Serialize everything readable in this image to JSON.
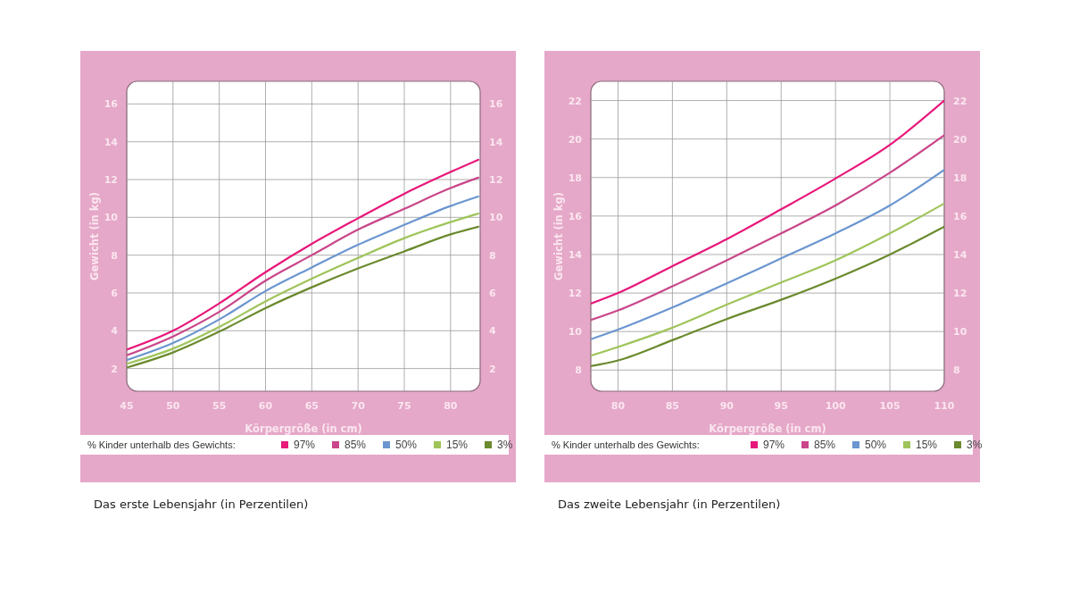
{
  "chart_data": [
    {
      "type": "line",
      "xlabel": "Körpergröße (in cm)",
      "ylabel": "Gewicht (in kg)",
      "legend_title": "% Kinder unterhalb des Gewichts:",
      "legend": "bottom",
      "grid": true,
      "line_style": "solid",
      "marker": "none",
      "x": [
        45,
        50,
        55,
        60,
        65,
        70,
        75,
        80,
        83
      ],
      "xlim": [
        45,
        83.2
      ],
      "xticks": [
        45,
        50,
        55,
        60,
        65,
        70,
        75,
        80
      ],
      "ylim": [
        0.8,
        17.2
      ],
      "yticks": [
        2,
        4,
        6,
        8,
        10,
        12,
        14,
        16
      ],
      "y2lim": [
        0.8,
        17.2
      ],
      "y2ticks": [
        2,
        4,
        6,
        8,
        10,
        12,
        14,
        16
      ],
      "annotations": [
        "Das erste Lebensjahr (in Perzentilen)"
      ],
      "series": [
        {
          "name": "97%",
          "color": "#e8177a",
          "values": [
            3.0,
            4.0,
            5.45,
            7.1,
            8.6,
            9.95,
            11.25,
            12.4,
            13.05
          ]
        },
        {
          "name": "85%",
          "color": "#c9468a",
          "values": [
            2.7,
            3.7,
            5.0,
            6.65,
            8.0,
            9.35,
            10.45,
            11.55,
            12.1
          ]
        },
        {
          "name": "50%",
          "color": "#6b96d0",
          "values": [
            2.45,
            3.35,
            4.6,
            6.1,
            7.35,
            8.55,
            9.6,
            10.6,
            11.1
          ]
        },
        {
          "name": "15%",
          "color": "#9fc45a",
          "values": [
            2.25,
            3.05,
            4.2,
            5.55,
            6.75,
            7.85,
            8.9,
            9.75,
            10.2
          ]
        },
        {
          "name": "3%",
          "color": "#6b8a2e",
          "values": [
            2.05,
            2.85,
            3.95,
            5.2,
            6.3,
            7.3,
            8.2,
            9.1,
            9.5
          ]
        }
      ]
    },
    {
      "type": "line",
      "xlabel": "Körpergröße (in cm)",
      "ylabel": "Gewicht (in kg)",
      "legend_title": "% Kinder unterhalb des Gewichts:",
      "legend": "bottom",
      "grid": true,
      "line_style": "solid",
      "marker": "none",
      "x": [
        77.5,
        80,
        85,
        90,
        95,
        100,
        105,
        110
      ],
      "xlim": [
        77.5,
        110
      ],
      "xticks": [
        80,
        85,
        90,
        95,
        100,
        105,
        110
      ],
      "ylim": [
        6.9,
        23
      ],
      "yticks": [
        8,
        10,
        12,
        14,
        16,
        18,
        20,
        22
      ],
      "y2lim": [
        6.9,
        23
      ],
      "y2ticks": [
        8,
        10,
        12,
        14,
        16,
        18,
        20,
        22
      ],
      "annotations": [
        "Das zweite Lebensjahr (in Perzentilen)"
      ],
      "series": [
        {
          "name": "97%",
          "color": "#e8177a",
          "values": [
            11.45,
            12.0,
            13.4,
            14.8,
            16.35,
            17.95,
            19.7,
            22.0
          ]
        },
        {
          "name": "85%",
          "color": "#c9468a",
          "values": [
            10.6,
            11.1,
            12.35,
            13.7,
            15.1,
            16.55,
            18.25,
            20.2
          ]
        },
        {
          "name": "50%",
          "color": "#6b96d0",
          "values": [
            9.6,
            10.1,
            11.25,
            12.5,
            13.8,
            15.1,
            16.55,
            18.4
          ]
        },
        {
          "name": "15%",
          "color": "#9fc45a",
          "values": [
            8.75,
            9.2,
            10.2,
            11.4,
            12.55,
            13.7,
            15.1,
            16.65
          ]
        },
        {
          "name": "3%",
          "color": "#6b8a2e",
          "values": [
            8.2,
            8.5,
            9.55,
            10.65,
            11.65,
            12.75,
            14.0,
            15.45
          ]
        }
      ]
    }
  ]
}
